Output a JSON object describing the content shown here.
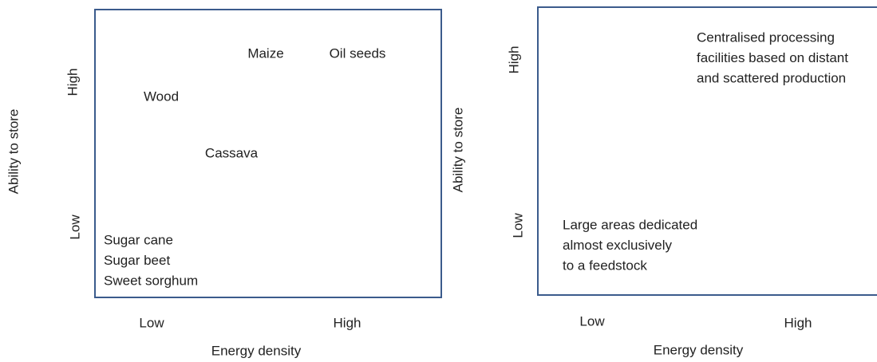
{
  "panels": [
    {
      "y_axis_label": "Ability to store",
      "y_high": "High",
      "y_low": "Low",
      "x_low": "Low",
      "x_high": "High",
      "x_axis_label": "Energy density",
      "items": [
        [
          "Maize"
        ],
        [
          "Oil seeds"
        ],
        [
          "Wood"
        ],
        [
          "Cassava"
        ],
        [
          "Sugar cane",
          "Sugar beet",
          "Sweet sorghum"
        ]
      ]
    },
    {
      "y_axis_label": "Ability to store",
      "y_high": "High",
      "y_low": "Low",
      "x_low": "Low",
      "x_high": "High",
      "x_axis_label": "Energy density",
      "items": [
        [
          "Centralised processing",
          "facilities based on distant",
          "and scattered production"
        ],
        [
          "Large areas dedicated",
          "almost exclusively",
          "to a feedstock"
        ]
      ]
    }
  ]
}
